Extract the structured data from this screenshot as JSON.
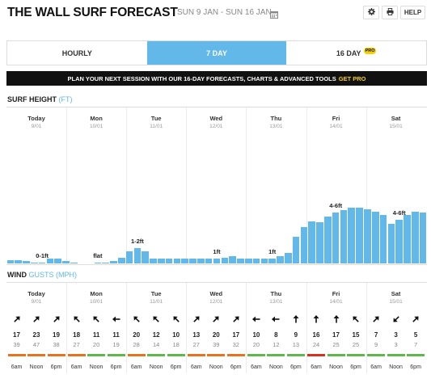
{
  "header": {
    "title": "THE WALL SURF FORECAST",
    "date_range": "SUN 9 JAN - SUN 16 JAN",
    "help_label": "HELP"
  },
  "tabs": [
    {
      "label": "HOURLY",
      "active": false,
      "pro": false
    },
    {
      "label": "7 DAY",
      "active": true,
      "pro": false
    },
    {
      "label": "16 DAY",
      "active": false,
      "pro": true
    }
  ],
  "pro_badge": "PRO",
  "banner": {
    "text": "PLAN YOUR NEXT SESSION WITH OUR 16-DAY FORECASTS, CHARTS & ADVANCED TOOLS",
    "cta": "GET PRO"
  },
  "surf": {
    "heading": "SURF HEIGHT",
    "unit": "(FT)"
  },
  "wind": {
    "heading": "WIND",
    "unit": "GUSTS (MPH)"
  },
  "days": [
    {
      "name": "Today",
      "date": "9/01"
    },
    {
      "name": "Mon",
      "date": "10/01"
    },
    {
      "name": "Tue",
      "date": "11/01"
    },
    {
      "name": "Wed",
      "date": "12/01"
    },
    {
      "name": "Thu",
      "date": "13/01"
    },
    {
      "name": "Fri",
      "date": "14/01"
    },
    {
      "name": "Sat",
      "date": "15/01"
    }
  ],
  "chart_data": {
    "type": "bar",
    "series": [
      {
        "values": [
          0.15,
          0.12,
          0.1,
          0.05,
          0.05,
          0.2,
          0.2,
          0.1,
          0.02,
          0,
          0,
          0.02,
          0.04,
          0.1,
          0.25,
          0.5,
          0.65,
          0.5,
          0.2,
          0.2,
          0.2,
          0.2,
          0.2,
          0.2,
          0.2,
          0.2,
          0.2,
          0.25,
          0.3,
          0.2,
          0.2,
          0.2,
          0.2,
          0.2,
          0.3,
          0.45,
          1.1,
          1.5,
          1.75,
          1.7,
          1.95,
          2.1,
          2.2,
          2.3,
          2.3,
          2.25,
          2.15,
          2.0,
          1.65,
          1.8,
          2.0,
          2.15,
          2.1
        ]
      }
    ],
    "range_labels": [
      {
        "text": "0-1ft",
        "bar": 4
      },
      {
        "text": "flat",
        "bar": 11
      },
      {
        "text": "1-2ft",
        "bar": 16
      },
      {
        "text": "1ft",
        "bar": 26
      },
      {
        "text": "1ft",
        "bar": 33
      },
      {
        "text": "4-6ft",
        "bar": 41
      },
      {
        "text": "4-6ft",
        "bar": 49
      }
    ],
    "ylim": [
      0,
      3
    ]
  },
  "wind_data": {
    "times": [
      "6am",
      "Noon",
      "6pm"
    ],
    "speeds": [
      17,
      23,
      19,
      18,
      11,
      11,
      20,
      12,
      10,
      13,
      20,
      17,
      10,
      8,
      9,
      16,
      17,
      15,
      7,
      3,
      5
    ],
    "gusts": [
      39,
      47,
      38,
      27,
      20,
      19,
      28,
      14,
      18,
      27,
      39,
      32,
      20,
      12,
      13,
      24,
      25,
      25,
      9,
      3,
      7
    ],
    "directions_deg": [
      225,
      225,
      225,
      135,
      135,
      90,
      135,
      135,
      135,
      225,
      225,
      225,
      90,
      90,
      180,
      180,
      180,
      135,
      225,
      45,
      225
    ],
    "condition_colors": [
      "#e8731c",
      "#e8731c",
      "#e8731c",
      "#e8731c",
      "#5fb84a",
      "#5fb84a",
      "#e8731c",
      "#5fb84a",
      "#5fb84a",
      "#e8731c",
      "#e8731c",
      "#e8731c",
      "#5fb84a",
      "#5fb84a",
      "#5fb84a",
      "#d7301f",
      "#5fb84a",
      "#5fb84a",
      "#5fb84a",
      "#5fb84a",
      "#5fb84a"
    ]
  },
  "colors": {
    "accent": "#62b8e8",
    "bar": "#62b8e8",
    "banner_cta": "#f5d000",
    "offshore": "#5fb84a",
    "cross_shore": "#e8731c",
    "onshore": "#d7301f"
  }
}
